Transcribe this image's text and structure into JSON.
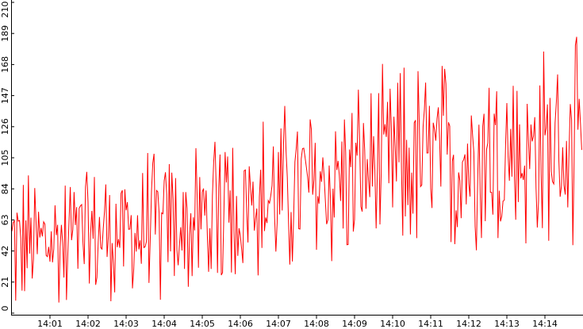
{
  "chart_data": {
    "type": "line",
    "title": "",
    "xlabel": "",
    "ylabel": "",
    "ylim": [
      0,
      210
    ],
    "x_range": [
      "14:00:00",
      "14:15:00"
    ],
    "yticks": [
      0,
      21,
      42,
      63,
      84,
      105,
      126,
      147,
      168,
      189,
      210
    ],
    "xticks": [
      "14:01",
      "14:02",
      "14:03",
      "14:04",
      "14:05",
      "14:06",
      "14:07",
      "14:08",
      "14:09",
      "14:10",
      "14:11",
      "14:12",
      "14:13",
      "14:14"
    ],
    "grid": false,
    "legend": "none",
    "series": [
      {
        "color": "#ff0000",
        "sample_interval_s": 2,
        "trend_segments": [
          {
            "from": "14:00:00",
            "to": "14:05:00",
            "mean_start": 45,
            "mean_end": 60,
            "min": 5,
            "max": 127
          },
          {
            "from": "14:05:00",
            "to": "14:10:00",
            "mean_start": 65,
            "mean_end": 100,
            "min": 25,
            "max": 172
          },
          {
            "from": "14:10:00",
            "to": "14:15:00",
            "mean_start": 100,
            "mean_end": 110,
            "min": 42,
            "max": 210
          }
        ]
      }
    ]
  },
  "colors": {
    "background": "#ffffff",
    "series": "#ff0000",
    "axis": "#000000"
  }
}
